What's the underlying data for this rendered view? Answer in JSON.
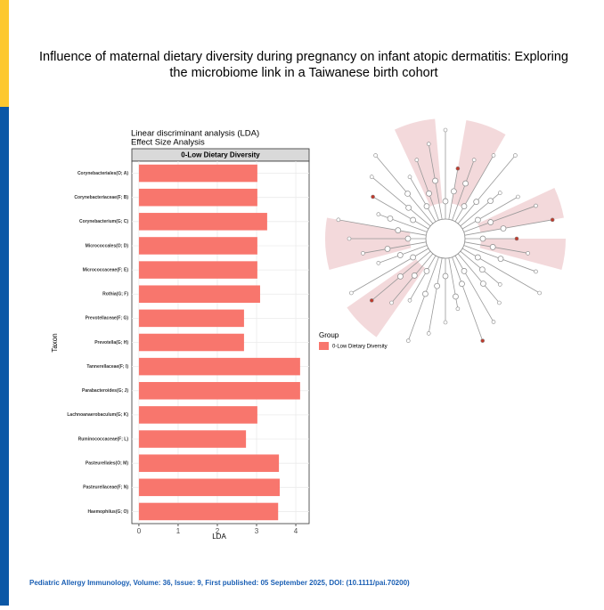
{
  "header": {
    "title_lines": [
      "Influence of maternal dietary diversity during pregnancy on infant atopic dermatitis: Exploring",
      "the microbiome link in a Taiwanese birth cohort"
    ]
  },
  "citation": "Pediatric Allergy Immunology, Volume: 36, Issue: 9, First published: 05 September 2025, DOI: (10.1111/pai.70200)",
  "chart_data": {
    "type": "bar",
    "orientation": "horizontal",
    "title_lines": [
      "Linear discriminant analysis (LDA)",
      "Effect Size Analysis"
    ],
    "panel_label": "0-Low Dietary Diversity",
    "x_label": "LDA",
    "y_label": "Taxon",
    "categories": [
      "Corynebacteriales(O; A)",
      "Corynebacteriaceae(F; B)",
      "Corynebacterium(G; C)",
      "Micrococcales(O; D)",
      "Micrococcaceae(F; E)",
      "Rothia(G; F)",
      "Prevotellaceae(F; G)",
      "Prevotella(G; H)",
      "Tannerellaceae(F; I)",
      "Parabacteroides(G; J)",
      "Lachnoanaerobaculum(G; K)",
      "Ruminococcaceae(F; L)",
      "Pasteurellales(O; M)",
      "Pasteurellaceae(F; N)",
      "Haemophilus(G; O)"
    ],
    "series": [
      {
        "name": "0-Low Dietary Diversity",
        "color": "#f8766d",
        "values": [
          3.02,
          3.02,
          3.27,
          3.02,
          3.02,
          3.09,
          2.68,
          2.68,
          4.11,
          4.11,
          3.02,
          2.73,
          3.57,
          3.59,
          3.55
        ]
      }
    ],
    "legend_title": "Group",
    "xlim": [
      -0.18,
      4.34
    ],
    "xticks": [
      0,
      1,
      2,
      3,
      4
    ],
    "grid": true
  }
}
